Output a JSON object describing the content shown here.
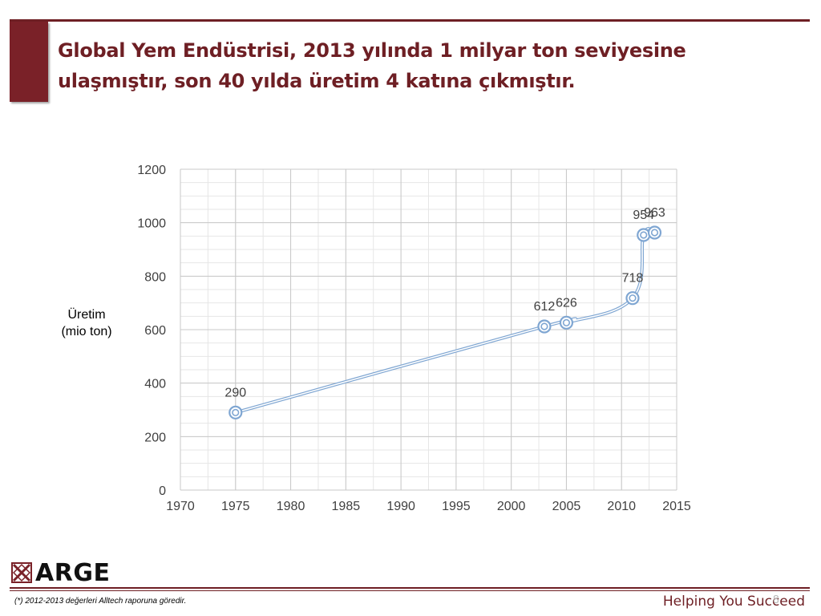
{
  "slide": {
    "title_lines": [
      "Global Yem Endüstrisi, 2013 yılında 1 milyar ton seviyesine",
      "ulaşmıştır, son 40 yılda üretim 4 katına çıkmıştır."
    ],
    "footnote": "(*) 2012-2013 değerleri Alltech raporuna göredir.",
    "tagline": "Helping You Succeed",
    "page_number": "8",
    "logo_text": "ARGE",
    "logo_icon": "arge-logo-icon"
  },
  "chart_data": {
    "type": "line",
    "title": "",
    "xlabel": "",
    "ylabel_lines": [
      "Üretim",
      "(mio ton)"
    ],
    "xlim": [
      1970,
      2015
    ],
    "ylim": [
      0,
      1200
    ],
    "x_ticks": [
      1970,
      1975,
      1980,
      1985,
      1990,
      1995,
      2000,
      2005,
      2010,
      2015
    ],
    "y_ticks": [
      0,
      200,
      400,
      600,
      800,
      1000,
      1200
    ],
    "grid": true,
    "legend": "none",
    "series": [
      {
        "x": [
          1975,
          2003,
          2005,
          2011,
          2012,
          2013
        ],
        "y": [
          290,
          612,
          626,
          718,
          954,
          963
        ],
        "labels": [
          "290",
          "612",
          "626",
          "718",
          "954",
          "963"
        ],
        "color": "#7fa6d2"
      }
    ]
  }
}
